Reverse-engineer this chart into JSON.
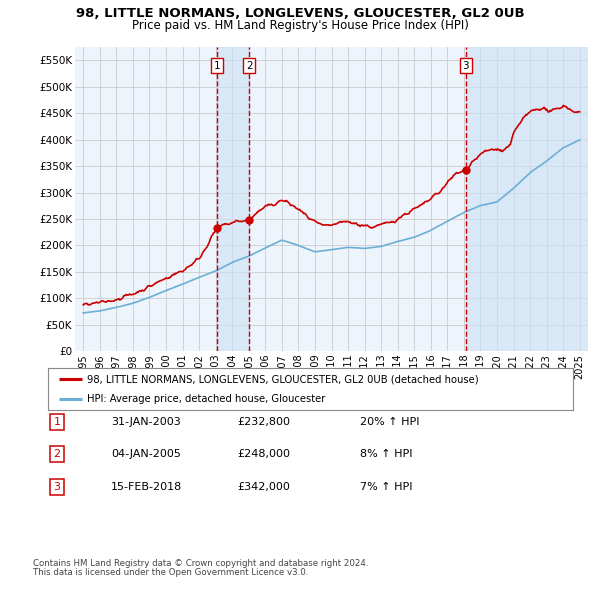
{
  "title": "98, LITTLE NORMANS, LONGLEVENS, GLOUCESTER, GL2 0UB",
  "subtitle": "Price paid vs. HM Land Registry's House Price Index (HPI)",
  "legend_line1": "98, LITTLE NORMANS, LONGLEVENS, GLOUCESTER, GL2 0UB (detached house)",
  "legend_line2": "HPI: Average price, detached house, Gloucester",
  "transactions": [
    {
      "label": "1",
      "date": "31-JAN-2003",
      "price": 232800,
      "pct": "20% ↑ HPI",
      "x": 2003.08
    },
    {
      "label": "2",
      "date": "04-JAN-2005",
      "price": 248000,
      "pct": "8% ↑ HPI",
      "x": 2005.02
    },
    {
      "label": "3",
      "date": "15-FEB-2018",
      "price": 342000,
      "pct": "7% ↑ HPI",
      "x": 2018.12
    }
  ],
  "footnote1": "Contains HM Land Registry data © Crown copyright and database right 2024.",
  "footnote2": "This data is licensed under the Open Government Licence v3.0.",
  "ylim": [
    0,
    575000
  ],
  "xlim_start": 1994.5,
  "xlim_end": 2025.5,
  "yticks": [
    0,
    50000,
    100000,
    150000,
    200000,
    250000,
    300000,
    350000,
    400000,
    450000,
    500000,
    550000
  ],
  "ytick_labels": [
    "£0",
    "£50K",
    "£100K",
    "£150K",
    "£200K",
    "£250K",
    "£300K",
    "£350K",
    "£400K",
    "£450K",
    "£500K",
    "£550K"
  ],
  "xticks": [
    1995,
    1996,
    1997,
    1998,
    1999,
    2000,
    2001,
    2002,
    2003,
    2004,
    2005,
    2006,
    2007,
    2008,
    2009,
    2010,
    2011,
    2012,
    2013,
    2014,
    2015,
    2016,
    2017,
    2018,
    2019,
    2020,
    2021,
    2022,
    2023,
    2024,
    2025
  ],
  "hpi_color": "#6baed6",
  "price_color": "#cc0000",
  "vline_color": "#cc0000",
  "band_color": "#ddeeff",
  "grid_color": "#cccccc",
  "bg_color": "#ffffff",
  "plot_bg_color": "#eef4fb"
}
